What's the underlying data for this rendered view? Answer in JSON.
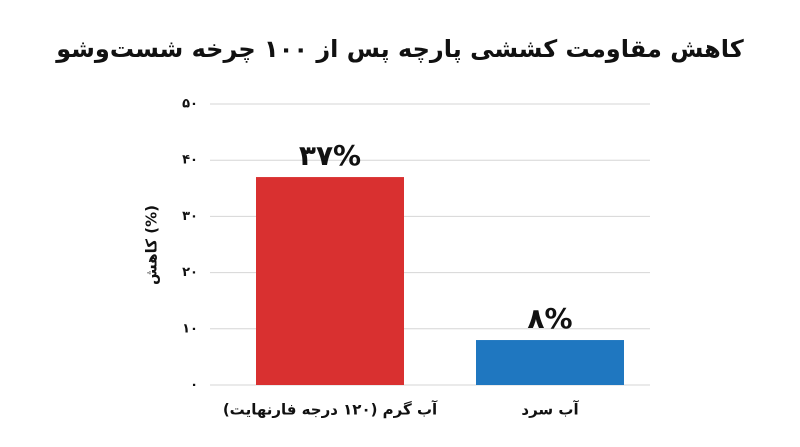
{
  "chart_data": {
    "type": "bar",
    "title": "کاهش مقاومت کششی پارچه پس از ۱۰۰ چرخه شست‌وشو",
    "y_label": "کاهش (%)",
    "categories": [
      "آب گرم (۱۲۰ درجه فارنهایت)",
      "آب سرد"
    ],
    "values": [
      37,
      8
    ],
    "value_labels": [
      "۳۷%",
      "۸%"
    ],
    "colors": [
      "#d93030",
      "#1f77c0"
    ],
    "ylim": [
      0,
      50
    ],
    "yticks": [
      {
        "value": 0,
        "label": "۰"
      },
      {
        "value": 10,
        "label": "۱۰"
      },
      {
        "value": 20,
        "label": "۲۰"
      },
      {
        "value": 30,
        "label": "۳۰"
      },
      {
        "value": 40,
        "label": "۴۰"
      },
      {
        "value": 50,
        "label": "۵۰"
      }
    ],
    "grid": true
  }
}
